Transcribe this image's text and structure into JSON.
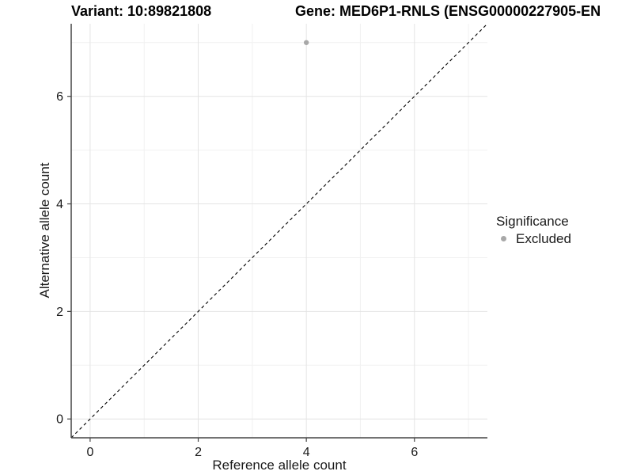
{
  "chart_data": {
    "type": "scatter",
    "title_left": "Variant: 10:89821808",
    "title_right": "Gene: MED6P1-RNLS (ENSG00000227905-EN",
    "xlabel": "Reference allele count",
    "ylabel": "Alternative allele count",
    "xlim": [
      -0.35,
      7.35
    ],
    "ylim": [
      -0.35,
      7.35
    ],
    "xticks": [
      0,
      2,
      4,
      6
    ],
    "yticks": [
      0,
      2,
      4,
      6
    ],
    "xticks_minor": [
      1,
      3,
      5,
      7
    ],
    "yticks_minor": [
      1,
      3,
      5,
      7
    ],
    "grid": true,
    "points": [
      {
        "x": 4,
        "y": 7,
        "series": "Excluded"
      }
    ],
    "identity_line": {
      "style": "dashed",
      "slope": 1,
      "intercept": 0,
      "color": "#000000"
    },
    "legend": {
      "title": "Significance",
      "position": "right",
      "entries": [
        {
          "label": "Excluded",
          "color": "#a8a8a8"
        }
      ]
    },
    "colors": {
      "point": "#a8a8a8",
      "axis": "#454545",
      "grid_major": "#e4e4e4",
      "grid_minor": "#f1f1f1",
      "text": "#1a1a1a"
    }
  }
}
